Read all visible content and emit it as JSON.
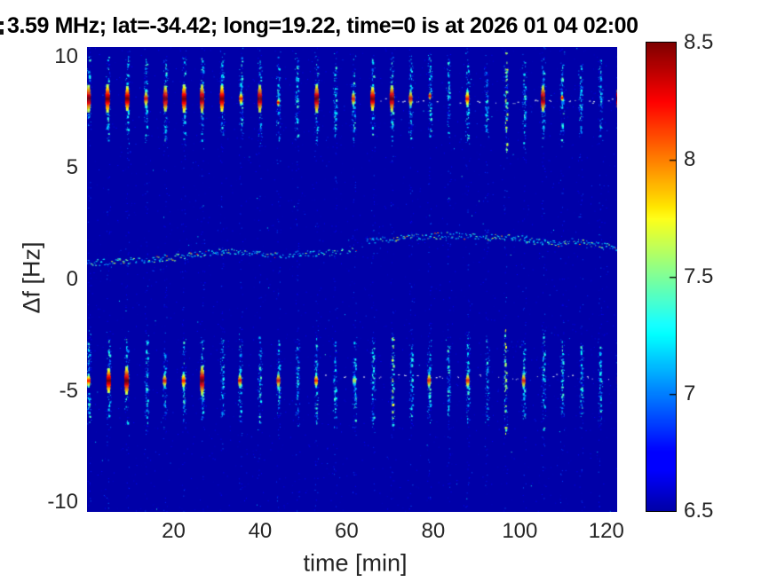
{
  "chart_data": {
    "type": "heatmap",
    "subtype": "doppler-spectrogram",
    "title": "3.59 MHz;  lat=-34.42; long=19.22, time=0 is at 2026 01 04 02:00",
    "xlabel": "time [min]",
    "ylabel": "Δf [Hz]",
    "xlim": [
      0,
      122.5
    ],
    "ylim": [
      -10.42,
      10.42
    ],
    "xticks": [
      20,
      40,
      60,
      80,
      100,
      120
    ],
    "yticks": [
      10,
      5,
      0,
      -5,
      -10
    ],
    "grid": false,
    "colorbar": {
      "vmin": 6.5,
      "vmax": 8.5,
      "tick_labels": [
        "8.5",
        "8",
        "7.5",
        "7",
        "6.5"
      ],
      "tick_values": [
        8.5,
        8,
        7.5,
        7,
        6.5
      ],
      "mark_values": [
        8,
        7.5,
        7
      ],
      "colormap": "jet",
      "position": "right"
    },
    "background_value": 6.5,
    "pulse_trains": [
      {
        "name": "upper-pulse-row",
        "center_hz": 8.12,
        "first_min": 0.5,
        "period_min": 4.37,
        "profiles": [
          "R",
          "R",
          "R",
          "O",
          "R",
          "R",
          "R",
          "R",
          "O",
          "R",
          "CR",
          "C",
          "R",
          "C",
          "O",
          "R",
          "R",
          "O",
          "CR",
          "C",
          "O",
          "C",
          "CB",
          "C",
          "R",
          "CR",
          "C",
          "C",
          "R"
        ]
      },
      {
        "name": "lower-pulse-row",
        "center_hz": -4.52,
        "first_min": 0.5,
        "period_min": 4.37,
        "profiles": [
          "O",
          "R",
          "R",
          "C",
          "O",
          "O",
          "R",
          "C",
          "O",
          "C",
          "O",
          "C",
          "O",
          "C",
          "G",
          "C",
          "CB",
          "C",
          "O",
          "C",
          "O",
          "C",
          "CB",
          "O",
          "C",
          "C",
          "C",
          "C",
          "O"
        ]
      }
    ],
    "profile_legend": {
      "R": "strong red core",
      "O": "orange-red core",
      "G": "green-yellow core",
      "C": "faint cyan streak",
      "CR": "cyan streak with small red segment",
      "CB": "bright cyan streak"
    },
    "doppler_trace": {
      "points_min_hz": [
        [
          0,
          0.75
        ],
        [
          5,
          0.8
        ],
        [
          10,
          0.85
        ],
        [
          15,
          0.92
        ],
        [
          20,
          1.0
        ],
        [
          25,
          1.12
        ],
        [
          29,
          1.22
        ],
        [
          33,
          1.3
        ],
        [
          36,
          1.28
        ],
        [
          39,
          1.18
        ],
        [
          42,
          1.1
        ],
        [
          46,
          1.12
        ],
        [
          50,
          1.18
        ],
        [
          54,
          1.2
        ],
        [
          58,
          1.22
        ],
        [
          62,
          1.3
        ],
        [
          64.5,
          1.7
        ],
        [
          68,
          1.8
        ],
        [
          72,
          1.88
        ],
        [
          76,
          1.92
        ],
        [
          80,
          1.97
        ],
        [
          84,
          2.0
        ],
        [
          88,
          1.95
        ],
        [
          92,
          1.9
        ],
        [
          96,
          1.9
        ],
        [
          100,
          1.85
        ],
        [
          104,
          1.7
        ],
        [
          108,
          1.62
        ],
        [
          112,
          1.72
        ],
        [
          116,
          1.62
        ],
        [
          120,
          1.52
        ],
        [
          122.5,
          1.45
        ]
      ],
      "gap_min": [
        62.3,
        64.3
      ],
      "faint_min": [
        44,
        62
      ]
    },
    "dot_rows": [
      {
        "hz": 8.0,
        "from_pulse": 15,
        "to_pulse": 27
      },
      {
        "hz": -4.35,
        "from_pulse": 12,
        "to_pulse": 27
      }
    ],
    "style": {
      "text_color": "#262626",
      "title_color": "#000000"
    }
  }
}
